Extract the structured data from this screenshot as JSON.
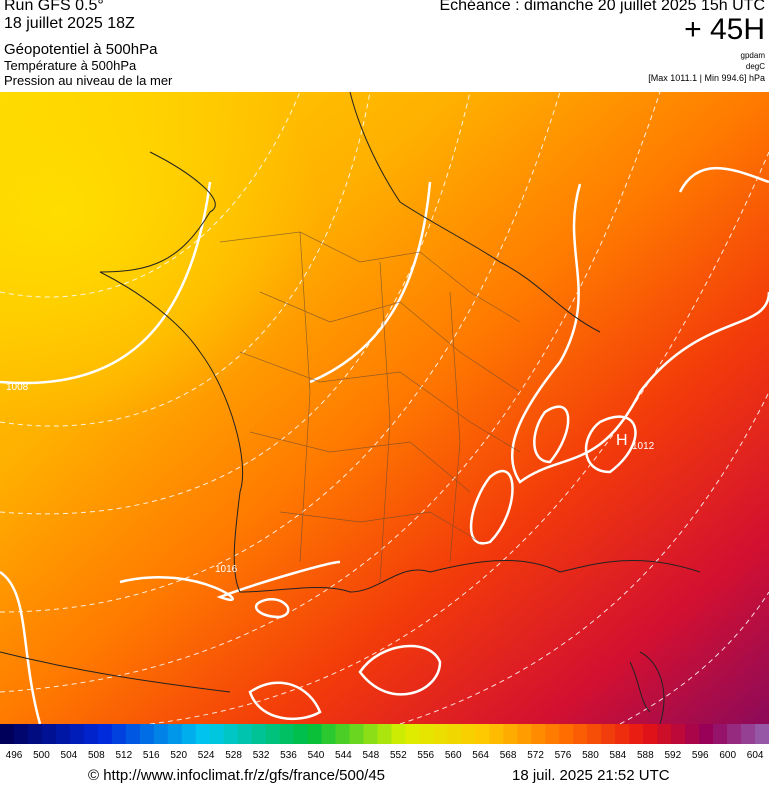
{
  "header": {
    "run": "Run GFS 0.5°",
    "date": "18 juillet 2025 18Z",
    "field1": "Géopotentiel à 500hPa",
    "field2": "Température à 500hPa",
    "field3": "Pression au niveau de la mer",
    "valid": "Echéance : dimanche 20 juillet 2025 15h UTC",
    "lead": "+ 45H",
    "unit1": "gpdam",
    "unit2": "degC",
    "pressure_range": "[Max 1011.1 | Min 994.6] hPa"
  },
  "map": {
    "labels": [
      "H",
      "1012",
      "1008",
      "1016"
    ]
  },
  "colorbar": {
    "labels": [
      496,
      500,
      504,
      508,
      512,
      516,
      520,
      524,
      528,
      532,
      536,
      540,
      544,
      548,
      552,
      556,
      560,
      564,
      568,
      572,
      576,
      580,
      584,
      588,
      592,
      596,
      600,
      604
    ]
  },
  "footer": {
    "url": "© http://www.infoclimat.fr/z/gfs/france/500/45",
    "timestamp": "18 juil. 2025 21:52 UTC"
  }
}
